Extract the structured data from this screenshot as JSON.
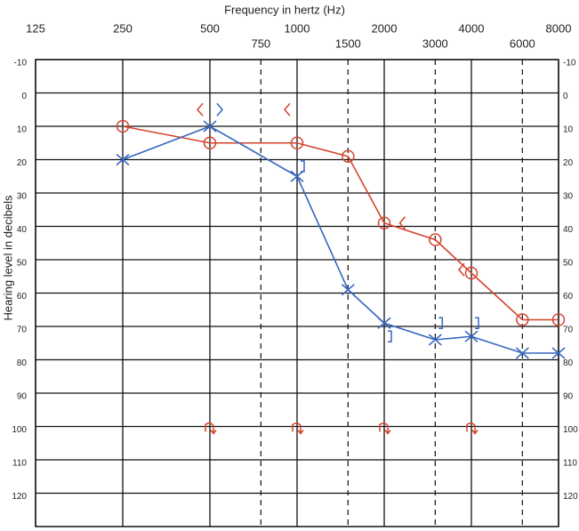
{
  "chart_data": {
    "type": "line",
    "title": "Frequency in hertz (Hz)",
    "y_label": "Hearing level in decibels",
    "x": [
      250,
      500,
      1000,
      1500,
      2000,
      3000,
      4000,
      6000,
      8000
    ],
    "xlim": [
      125,
      8000
    ],
    "xticks": [
      125,
      250,
      500,
      1000,
      2000,
      4000,
      8000
    ],
    "xticks_minor": [
      750,
      1500,
      3000,
      6000
    ],
    "log_scale_x": true,
    "ylim": [
      -10,
      130
    ],
    "y_reversed": true,
    "yticks": [
      -10,
      0,
      10,
      20,
      30,
      40,
      50,
      60,
      70,
      80,
      90,
      100,
      110,
      120
    ],
    "grid": true,
    "series": [
      {
        "color": "#d4432c",
        "marker": "circle",
        "values": [
          10,
          15,
          15,
          19,
          39,
          44,
          54,
          68,
          68
        ]
      },
      {
        "color": "#3567c0",
        "marker": "cross",
        "values": [
          20,
          10,
          25,
          59,
          69,
          74,
          73,
          78,
          78
        ]
      }
    ],
    "point_series": [
      {
        "color": "#d4432c",
        "marker": "lt",
        "x": [
          500,
          1000,
          2500,
          4000
        ],
        "values": [
          5,
          5,
          39,
          53
        ]
      },
      {
        "color": "#3567c0",
        "marker": "gt",
        "x": [
          500
        ],
        "values": [
          5
        ]
      },
      {
        "color": "#3567c0",
        "marker": "bracket",
        "x": [
          1000,
          2000,
          3000,
          4000
        ],
        "values": [
          22,
          73,
          69,
          69
        ]
      },
      {
        "color": "#d4432c",
        "marker": "arrow",
        "x": [
          500,
          1000,
          2000,
          4000
        ],
        "values": [
          100,
          100,
          100,
          100
        ]
      }
    ]
  }
}
